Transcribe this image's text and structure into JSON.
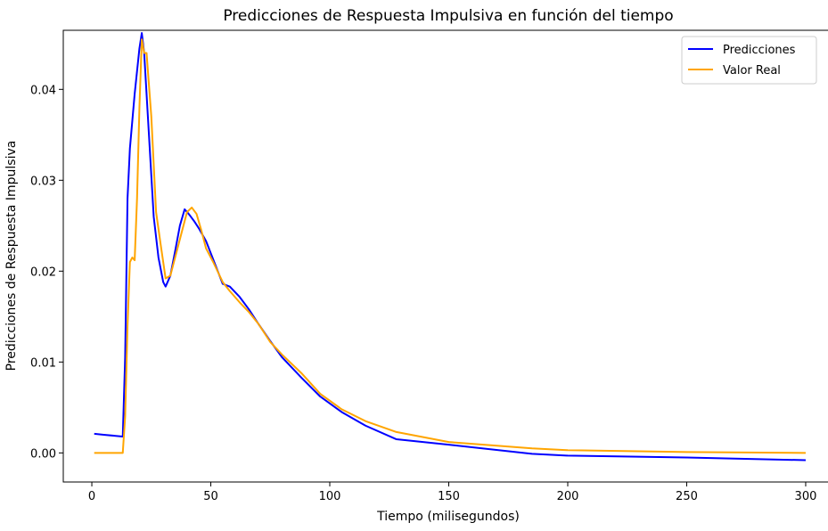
{
  "chart_data": {
    "type": "line",
    "title": "Predicciones de Respuesta Impulsiva en función del tiempo",
    "xlabel": "Tiempo (milisegundos)",
    "ylabel": "Predicciones de Respuesta Impulsiva",
    "xlim": [
      -12,
      312
    ],
    "ylim": [
      -0.0032,
      0.0465
    ],
    "xticks": [
      0,
      50,
      100,
      150,
      200,
      250,
      300
    ],
    "xtick_labels": [
      "0",
      "50",
      "100",
      "150",
      "200",
      "250",
      "300"
    ],
    "yticks": [
      0,
      0.01,
      0.02,
      0.03,
      0.04
    ],
    "ytick_labels": [
      "0.00",
      "0.01",
      "0.02",
      "0.03",
      "0.04"
    ],
    "grid": false,
    "legend_position": "top-right",
    "series": [
      {
        "name": "Predicciones",
        "color": "#0000ff",
        "x": [
          1,
          5,
          13,
          14,
          15,
          16,
          18,
          20,
          21,
          22,
          24,
          26,
          28,
          30,
          31,
          33,
          35,
          37,
          39,
          41,
          43,
          45,
          48,
          51,
          55,
          58,
          62,
          66,
          70,
          75,
          80,
          88,
          96,
          105,
          115,
          128,
          150,
          185,
          200,
          250,
          300
        ],
        "y": [
          0.0021,
          0.002,
          0.0018,
          0.0105,
          0.028,
          0.0335,
          0.0395,
          0.0445,
          0.0462,
          0.044,
          0.035,
          0.026,
          0.0215,
          0.0188,
          0.0183,
          0.0195,
          0.0222,
          0.025,
          0.0268,
          0.0262,
          0.0255,
          0.0247,
          0.0233,
          0.0213,
          0.0186,
          0.0183,
          0.0172,
          0.0158,
          0.0142,
          0.0123,
          0.0105,
          0.0083,
          0.0062,
          0.0045,
          0.003,
          0.0015,
          0.0009,
          -0.0001,
          -0.0003,
          -0.0005,
          -0.0008
        ]
      },
      {
        "name": "Valor Real",
        "color": "#ffa500",
        "x": [
          1,
          12,
          13,
          14,
          15,
          16,
          17,
          18,
          19,
          20,
          21,
          22,
          23,
          24,
          25,
          27,
          29,
          31,
          33,
          35,
          37,
          38,
          40,
          42,
          44,
          46,
          48,
          51,
          55,
          58,
          62,
          66,
          70,
          75,
          80,
          88,
          96,
          105,
          115,
          128,
          150,
          185,
          200,
          250,
          300
        ],
        "y": [
          0,
          0,
          0,
          0.004,
          0.014,
          0.021,
          0.0215,
          0.0212,
          0.028,
          0.038,
          0.0455,
          0.044,
          0.044,
          0.0405,
          0.037,
          0.0265,
          0.0228,
          0.0192,
          0.0195,
          0.0215,
          0.0235,
          0.0245,
          0.0265,
          0.027,
          0.0263,
          0.0245,
          0.0225,
          0.021,
          0.0188,
          0.0178,
          0.0166,
          0.0155,
          0.0142,
          0.0122,
          0.0108,
          0.0088,
          0.0065,
          0.0048,
          0.0035,
          0.0023,
          0.0012,
          0.0005,
          0.0003,
          0.0001,
          0
        ]
      }
    ]
  }
}
